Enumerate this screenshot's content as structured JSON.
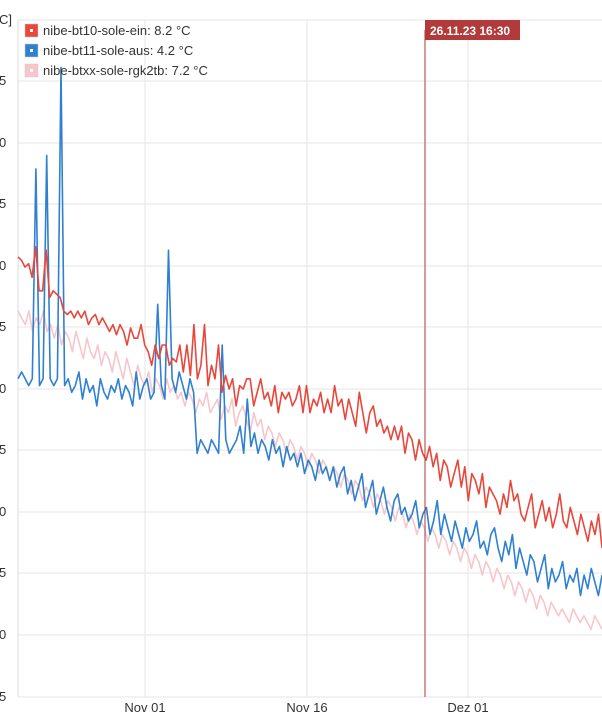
{
  "chart_data": {
    "type": "line",
    "ylabel_fragment": "C]",
    "y_tick_labels": [
      "5",
      "0",
      "5",
      "0",
      "5",
      "0",
      "5",
      "0",
      "5",
      "0",
      "5"
    ],
    "x_ticks": [
      "Nov 01",
      "Nov 16",
      "Dez 01"
    ],
    "grid": true,
    "legend_placement": "top-left",
    "marker": {
      "label": "26.11.23 16:30",
      "color": "#b23a3a"
    },
    "series": [
      {
        "name": "nibe-bt10-sole-ein: 8.2 °C",
        "color": "#e8483b",
        "values": [
          65,
          64.5,
          63.5,
          64,
          62,
          66.5,
          60,
          60,
          66,
          59,
          60,
          59.5,
          59,
          57,
          56.5,
          57,
          56,
          57,
          56,
          57,
          55,
          56,
          56.5,
          55,
          56,
          55,
          54,
          55,
          53.5,
          55,
          54,
          52,
          54.5,
          53,
          53,
          55,
          52,
          51,
          49,
          52,
          50,
          52,
          52,
          49,
          50,
          49.5,
          52,
          48,
          52,
          47.5,
          55,
          47,
          49,
          55,
          46,
          49,
          47,
          52,
          45,
          47.5,
          45.5,
          47,
          43,
          46,
          45.5,
          47,
          47,
          43,
          45,
          47,
          44,
          45,
          43,
          46,
          42,
          45,
          44,
          45,
          43,
          44,
          46,
          42,
          46,
          42,
          44,
          43,
          45,
          42,
          44,
          42,
          46,
          43,
          44,
          41,
          44,
          42,
          40,
          45,
          42,
          39,
          42,
          43,
          40,
          41,
          39,
          40,
          38,
          40,
          38,
          40,
          36,
          39,
          38,
          35,
          38,
          36,
          35,
          37,
          34,
          36,
          32,
          35,
          34,
          31,
          33,
          35,
          31,
          34,
          29,
          33,
          32,
          30,
          33,
          28,
          31,
          30,
          29,
          27,
          30,
          28,
          32,
          29,
          30,
          27,
          26,
          28,
          30,
          25,
          27,
          29,
          26,
          28,
          25,
          27,
          30,
          26,
          25,
          28,
          26,
          24,
          27,
          25,
          23,
          26,
          24,
          27,
          22
        ]
      },
      {
        "name": "nibe-bt11-sole-aus: 4.2 °C",
        "color": "#2f80d1",
        "values": [
          47,
          48,
          47,
          46,
          47,
          78,
          46,
          47,
          80,
          47,
          46,
          47,
          93,
          46,
          47,
          45,
          46,
          48,
          44,
          47,
          45,
          46,
          43,
          47,
          45,
          44,
          46,
          45,
          47,
          44,
          46,
          45,
          43,
          48,
          44,
          46,
          47,
          44,
          45,
          58,
          46,
          44,
          66,
          47,
          45,
          48,
          46,
          44,
          47,
          45,
          36,
          38,
          37,
          36,
          38,
          37,
          36,
          52,
          38,
          36,
          37,
          38,
          40,
          36,
          44,
          37,
          39,
          36,
          38,
          37,
          35,
          38,
          36,
          37,
          34,
          37,
          35,
          36,
          34,
          36,
          33,
          35,
          34,
          32,
          35,
          33,
          34,
          32,
          34,
          31,
          33,
          34,
          30,
          32,
          29,
          31,
          33,
          28,
          30,
          32,
          27,
          29,
          31,
          28,
          26,
          29,
          30,
          27,
          28,
          26,
          27,
          29,
          25,
          27,
          28,
          24,
          26,
          29,
          24,
          27,
          25,
          23,
          26,
          24,
          22,
          25,
          23,
          24,
          26,
          22,
          23,
          21,
          24,
          25,
          22,
          20,
          23,
          21,
          24,
          19,
          22,
          20,
          18,
          21,
          20,
          17,
          19,
          21,
          16,
          19,
          17,
          18,
          20,
          16,
          18,
          17,
          19,
          15,
          18,
          16,
          19,
          17,
          15,
          18
        ]
      },
      {
        "name": "nibe-btxx-sole-rgk2tb: 7.2 °C",
        "color": "#f6c6cb",
        "values": [
          57,
          56,
          55,
          57,
          54,
          56,
          55,
          57,
          54,
          55,
          53,
          55,
          52,
          54,
          53,
          51,
          54,
          52,
          50,
          53,
          51,
          50,
          52,
          49,
          51,
          50,
          48,
          51,
          49,
          47,
          50,
          48,
          46,
          49,
          47,
          46,
          48,
          45,
          47,
          46,
          44,
          47,
          45,
          46,
          44,
          45,
          43,
          45,
          44,
          42,
          44,
          43,
          45,
          42,
          43,
          44,
          41,
          43,
          42,
          44,
          40,
          42,
          43,
          41,
          39,
          42,
          40,
          41,
          38,
          40,
          39,
          37,
          39,
          38,
          36,
          38,
          37,
          35,
          37,
          36,
          34,
          36,
          35,
          33,
          35,
          34,
          32,
          34,
          33,
          31,
          33,
          32,
          30,
          32,
          31,
          29,
          31,
          30,
          28,
          30,
          29,
          27,
          29,
          28,
          26,
          28,
          27,
          25,
          27,
          26,
          24,
          26,
          25,
          23,
          25,
          24,
          22,
          24,
          23,
          21,
          23,
          22,
          20,
          22,
          21,
          19,
          21,
          20,
          18,
          20,
          19,
          17,
          19,
          18,
          16,
          18,
          17,
          15,
          17,
          16,
          14,
          16,
          15,
          13,
          15,
          14,
          12,
          14,
          13,
          12,
          13,
          12,
          11,
          13,
          12,
          11,
          12,
          11,
          10,
          12,
          11,
          10
        ]
      }
    ]
  }
}
